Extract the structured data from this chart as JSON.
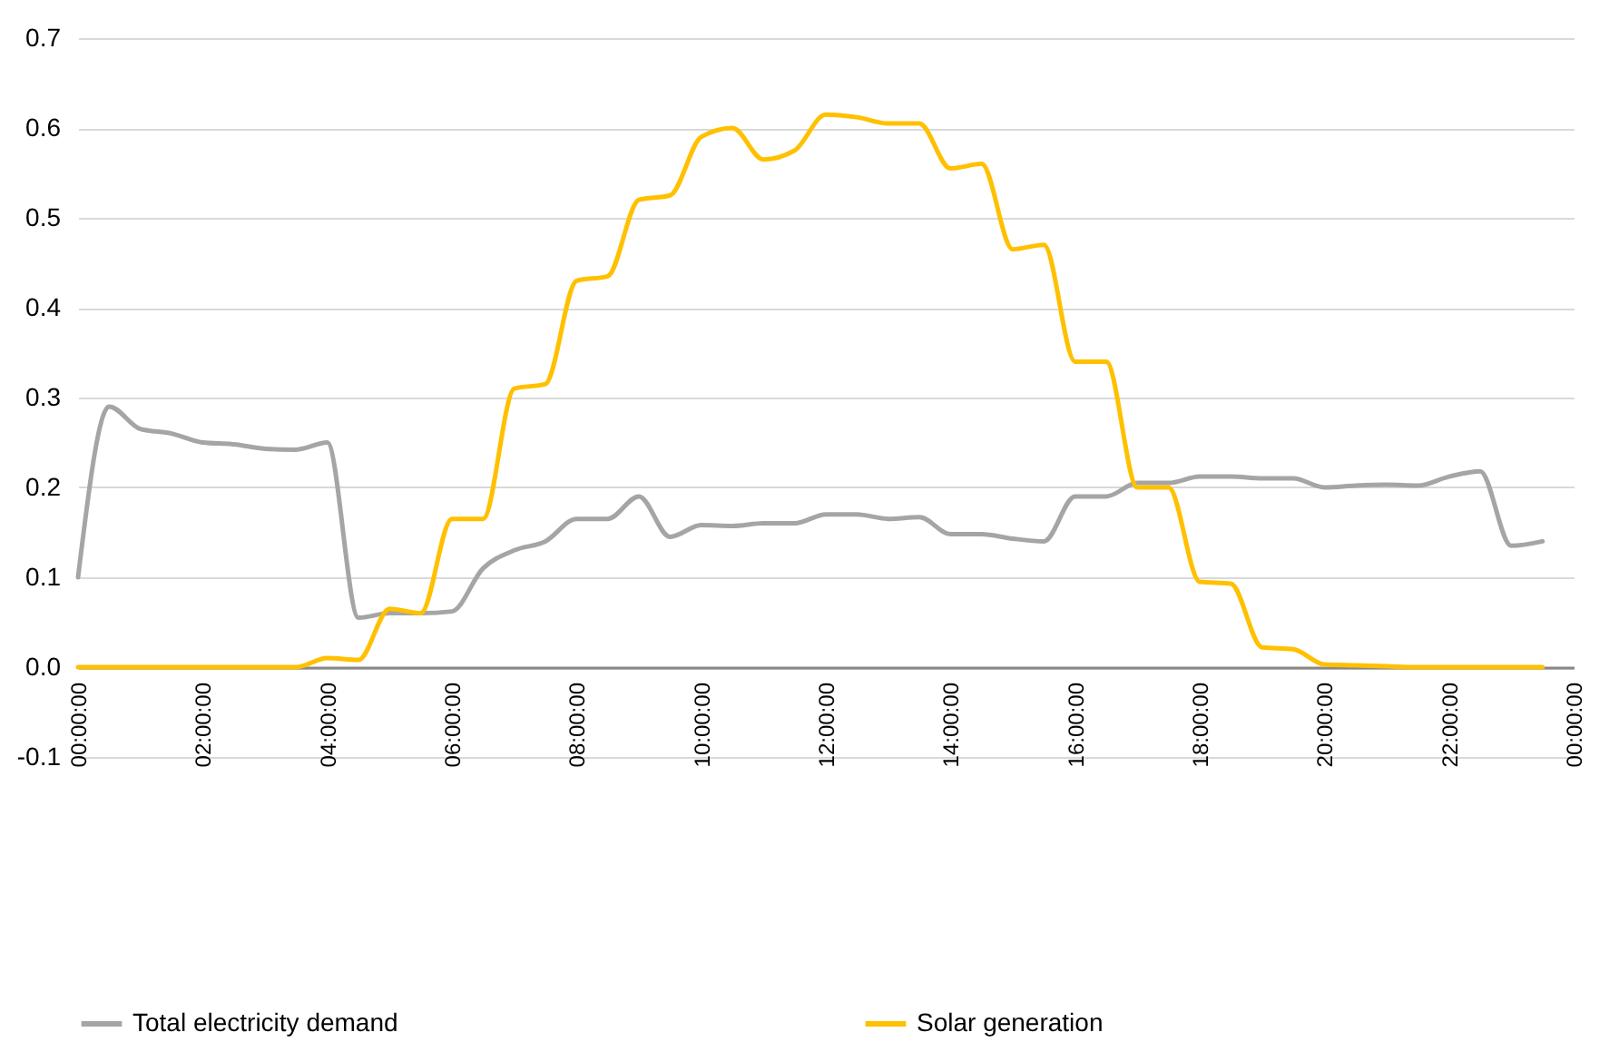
{
  "chart_data": {
    "type": "line",
    "categories": [
      "00:00:00",
      null,
      null,
      null,
      "02:00:00",
      null,
      null,
      null,
      "04:00:00",
      null,
      null,
      null,
      "06:00:00",
      null,
      null,
      null,
      "08:00:00",
      null,
      null,
      null,
      "10:00:00",
      null,
      null,
      null,
      "12:00:00",
      null,
      null,
      null,
      "14:00:00",
      null,
      null,
      null,
      "16:00:00",
      null,
      null,
      null,
      "18:00:00",
      null,
      null,
      null,
      "20:00:00",
      null,
      null,
      null,
      "22:00:00",
      null,
      null,
      null,
      "00:00:00"
    ],
    "series": [
      {
        "name": "Total electricity demand",
        "color": "#a5a5a5",
        "values": [
          0.1,
          0.29,
          0.265,
          0.26,
          0.25,
          0.248,
          0.243,
          0.242,
          0.25,
          0.055,
          0.06,
          0.06,
          0.062,
          0.11,
          0.13,
          0.14,
          0.165,
          0.165,
          0.19,
          0.145,
          0.158,
          0.157,
          0.16,
          0.16,
          0.17,
          0.17,
          0.165,
          0.167,
          0.148,
          0.148,
          0.143,
          0.14,
          0.19,
          0.19,
          0.205,
          0.205,
          0.212,
          0.212,
          0.21,
          0.21,
          0.2,
          0.202,
          0.203,
          0.202,
          0.212,
          0.218,
          0.135,
          0.14,
          null
        ]
      },
      {
        "name": "Solar generation",
        "color": "#ffc000",
        "values": [
          0,
          0,
          0,
          0,
          0,
          0,
          0,
          0,
          0.01,
          0.008,
          0.065,
          0.06,
          0.165,
          0.165,
          0.31,
          0.315,
          0.43,
          0.435,
          0.52,
          0.525,
          0.59,
          0.6,
          0.565,
          0.575,
          0.615,
          0.612,
          0.605,
          0.605,
          0.555,
          0.56,
          0.465,
          0.47,
          0.34,
          0.34,
          0.2,
          0.2,
          0.095,
          0.093,
          0.022,
          0.02,
          0.003,
          0.002,
          0.001,
          0,
          0,
          0,
          0,
          0,
          null
        ]
      }
    ],
    "ylim": [
      -0.1,
      0.7
    ],
    "yticks": [
      -0.1,
      {
        "value": 0,
        "label": "0.0"
      },
      0.1,
      0.2,
      0.3,
      0.4,
      0.5,
      0.6,
      0.7
    ],
    "grid": "y",
    "legend": "bottom"
  }
}
